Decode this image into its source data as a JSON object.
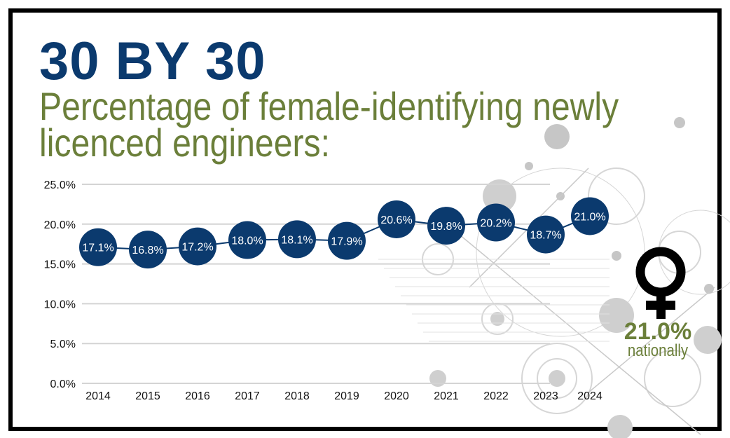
{
  "header": {
    "title": "30 BY 30",
    "subtitle_line1": "Percentage of female-identifying newly",
    "subtitle_line2": "licenced engineers:"
  },
  "callout": {
    "icon": "female-symbol-icon",
    "value": "21.0%",
    "label": "nationally"
  },
  "colors": {
    "navy": "#0b3a6e",
    "green": "#6b7f3a",
    "grid": "#d4d4d4"
  },
  "chart_data": {
    "type": "line",
    "title": "Percentage of female-identifying newly licenced engineers:",
    "categories": [
      "2014",
      "2015",
      "2016",
      "2017",
      "2018",
      "2019",
      "2020",
      "2021",
      "2022",
      "2023",
      "2024"
    ],
    "values": [
      17.1,
      16.8,
      17.2,
      18.0,
      18.1,
      17.9,
      20.6,
      19.8,
      20.2,
      18.7,
      21.0
    ],
    "data_labels": [
      "17.1%",
      "16.8%",
      "17.2%",
      "18.0%",
      "18.1%",
      "17.9%",
      "20.6%",
      "19.8%",
      "20.2%",
      "18.7%",
      "21.0%"
    ],
    "y_ticks": [
      "0.0%",
      "5.0%",
      "10.0%",
      "15.0%",
      "20.0%",
      "25.0%"
    ],
    "ylim": [
      0,
      25
    ],
    "grid": true,
    "legend": "none",
    "marker": "large filled circle with value label"
  }
}
